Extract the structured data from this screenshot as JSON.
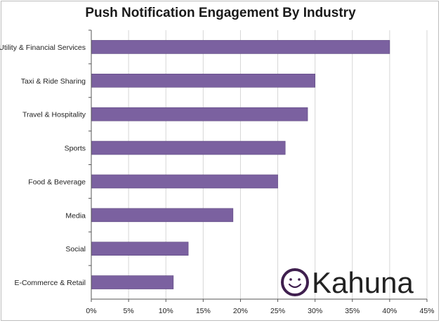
{
  "chart_data": {
    "type": "bar",
    "orientation": "horizontal",
    "title": "Push Notification Engagement By Industry",
    "xlabel": "",
    "ylabel": "",
    "categories": [
      "Utility & Financial Services",
      "Taxi & Ride Sharing",
      "Travel & Hospitality",
      "Sports",
      "Food & Beverage",
      "Media",
      "Social",
      "E-Commerce & Retail"
    ],
    "values": [
      40,
      30,
      29,
      26,
      25,
      19,
      13,
      11
    ],
    "unit": "%",
    "xlim": [
      0,
      45
    ],
    "x_ticks": [
      0,
      5,
      10,
      15,
      20,
      25,
      30,
      35,
      40,
      45
    ],
    "x_tick_labels": [
      "0%",
      "5%",
      "10%",
      "15%",
      "20%",
      "25%",
      "30%",
      "35%",
      "40%",
      "45%"
    ],
    "grid": true,
    "legend": "none",
    "bar_color": "#7b61a0",
    "grid_color": "#d6d6d6"
  },
  "logo": {
    "text": "Kahuna",
    "icon": "smiley-circle-icon",
    "color": "#3f1f4e"
  }
}
